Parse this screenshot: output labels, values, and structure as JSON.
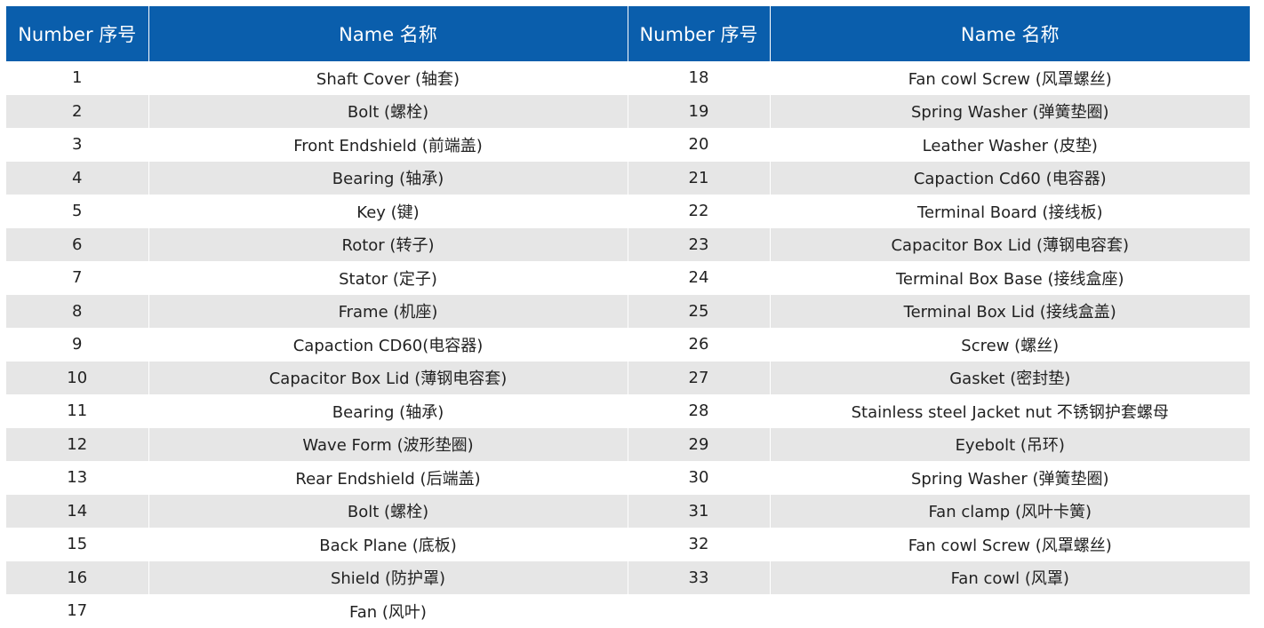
{
  "header": {
    "number_label": "Number 序号",
    "name_label": "Name 名称"
  },
  "colors": {
    "header_bg": "#0a5eac",
    "header_text": "#ffffff",
    "row_alt_bg": "#e6e6e6",
    "row_bg": "#ffffff",
    "text": "#222222"
  },
  "rows": [
    {
      "left": {
        "number": "1",
        "name": "Shaft Cover (轴套)"
      },
      "right": {
        "number": "18",
        "name": "Fan cowl Screw (风罩螺丝)"
      }
    },
    {
      "left": {
        "number": "2",
        "name": "Bolt (螺栓)"
      },
      "right": {
        "number": "19",
        "name": "Spring Washer (弹簧垫圈)"
      }
    },
    {
      "left": {
        "number": "3",
        "name": "Front Endshield (前端盖)"
      },
      "right": {
        "number": "20",
        "name": "Leather Washer (皮垫)"
      }
    },
    {
      "left": {
        "number": "4",
        "name": "Bearing (轴承)"
      },
      "right": {
        "number": "21",
        "name": "Capaction Cd60 (电容器)"
      }
    },
    {
      "left": {
        "number": "5",
        "name": "Key (键)"
      },
      "right": {
        "number": "22",
        "name": "Terminal Board (接线板)"
      }
    },
    {
      "left": {
        "number": "6",
        "name": "Rotor (转子)"
      },
      "right": {
        "number": "23",
        "name": "Capacitor Box Lid (薄钢电容套)"
      }
    },
    {
      "left": {
        "number": "7",
        "name": "Stator (定子)"
      },
      "right": {
        "number": "24",
        "name": "Terminal Box Base (接线盒座)"
      }
    },
    {
      "left": {
        "number": "8",
        "name": "Frame (机座)"
      },
      "right": {
        "number": "25",
        "name": "Terminal Box Lid (接线盒盖)"
      }
    },
    {
      "left": {
        "number": "9",
        "name": "Capaction CD60(电容器)"
      },
      "right": {
        "number": "26",
        "name": "Screw (螺丝)"
      }
    },
    {
      "left": {
        "number": "10",
        "name": "Capacitor Box Lid (薄钢电容套)"
      },
      "right": {
        "number": "27",
        "name": "Gasket (密封垫)"
      }
    },
    {
      "left": {
        "number": "11",
        "name": "Bearing (轴承)"
      },
      "right": {
        "number": "28",
        "name": "Stainless steel Jacket nut 不锈钢护套螺母"
      }
    },
    {
      "left": {
        "number": "12",
        "name": "Wave Form (波形垫圈)"
      },
      "right": {
        "number": "29",
        "name": "Eyebolt (吊环)"
      }
    },
    {
      "left": {
        "number": "13",
        "name": "Rear Endshield (后端盖)"
      },
      "right": {
        "number": "30",
        "name": "Spring Washer (弹簧垫圈)"
      }
    },
    {
      "left": {
        "number": "14",
        "name": "Bolt (螺栓)"
      },
      "right": {
        "number": "31",
        "name": "Fan clamp (风叶卡簧)"
      }
    },
    {
      "left": {
        "number": "15",
        "name": "Back Plane (底板)"
      },
      "right": {
        "number": "32",
        "name": "Fan cowl Screw (风罩螺丝)"
      }
    },
    {
      "left": {
        "number": "16",
        "name": "Shield (防护罩)"
      },
      "right": {
        "number": "33",
        "name": "Fan cowl (风罩)"
      }
    },
    {
      "left": {
        "number": "17",
        "name": "Fan (风叶)"
      },
      "right": {
        "number": "",
        "name": ""
      }
    }
  ]
}
